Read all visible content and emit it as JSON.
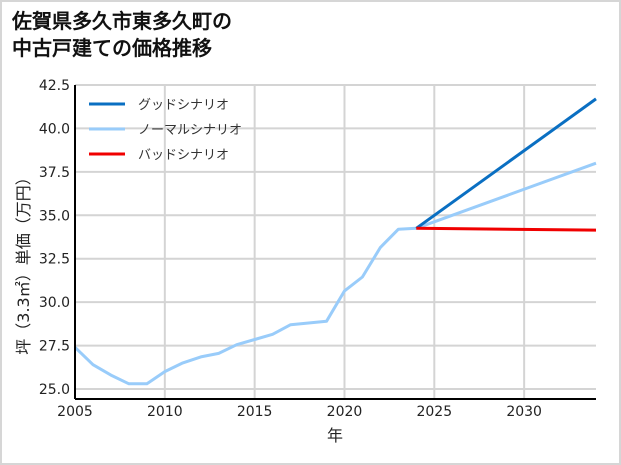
{
  "title_lines": [
    "佐賀県多久市東多久町の",
    "中古戸建ての価格推移"
  ],
  "chart_data": {
    "type": "line",
    "title": "佐賀県多久市東多久町の中古戸建ての価格推移",
    "xlabel": "年",
    "ylabel": "坪（3.3㎡）単価（万円）",
    "xlim": [
      2005,
      2034
    ],
    "ylim": [
      24.5,
      42.5
    ],
    "x_ticks": [
      2005,
      2010,
      2015,
      2020,
      2025,
      2030
    ],
    "y_ticks": [
      25.0,
      27.5,
      30.0,
      32.5,
      35.0,
      37.5,
      40.0,
      42.5
    ],
    "y_tick_labels": [
      "25.0",
      "27.5",
      "30.0",
      "32.5",
      "35.0",
      "37.5",
      "40.0",
      "42.5"
    ],
    "grid": true,
    "legend_position": "upper left",
    "series": [
      {
        "name": "グッドシナリオ",
        "color": "#0a6fc2",
        "x": [
          2024,
          2034
        ],
        "values": [
          34.25,
          41.7
        ]
      },
      {
        "name": "ノーマルシナリオ",
        "color": "#99ccfa",
        "x": [
          2005,
          2006,
          2007,
          2008,
          2009,
          2010,
          2011,
          2012,
          2013,
          2014,
          2015,
          2016,
          2017,
          2018,
          2019,
          2020,
          2021,
          2022,
          2023,
          2024,
          2034
        ],
        "values": [
          27.4,
          26.4,
          25.8,
          25.3,
          25.3,
          26.0,
          26.5,
          26.85,
          27.05,
          27.55,
          27.85,
          28.15,
          28.7,
          28.8,
          28.9,
          30.65,
          31.45,
          33.15,
          34.2,
          34.25,
          38.0
        ]
      },
      {
        "name": "バッドシナリオ",
        "color": "#f00000",
        "x": [
          2024,
          2034
        ],
        "values": [
          34.25,
          34.15
        ]
      }
    ]
  }
}
